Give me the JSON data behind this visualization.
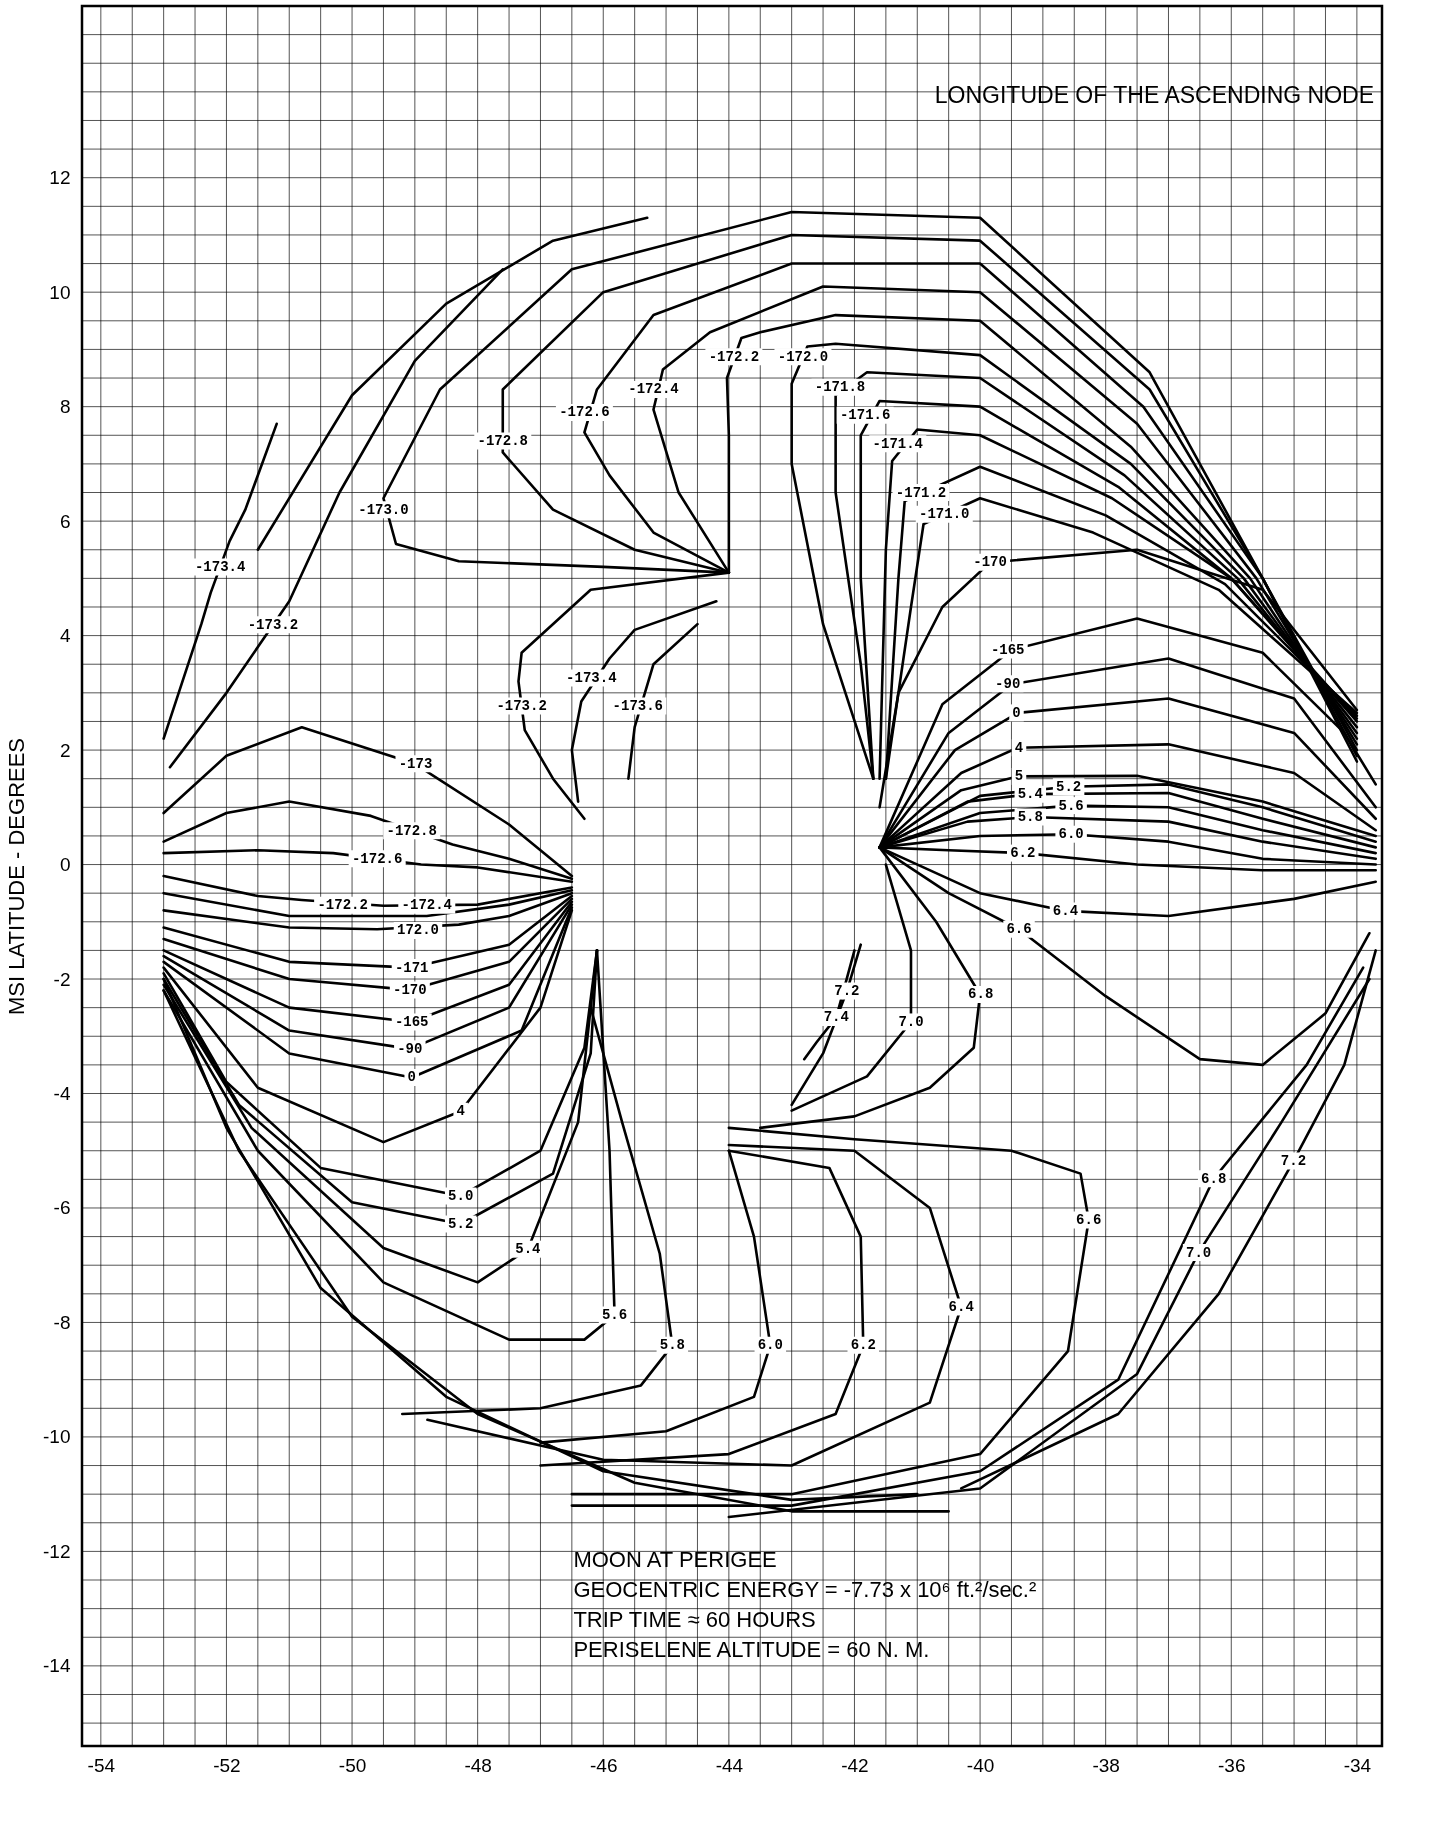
{
  "chart_data": {
    "type": "line",
    "ylabel": "MSI LATITUDE - DEGREES",
    "xlim": [
      -54.3,
      -33.6
    ],
    "ylim": [
      -15.4,
      15
    ],
    "grid": true,
    "marker": "none",
    "line_style": "solid",
    "xticks": [
      -54,
      {
        "value": -53.5,
        "label": null
      },
      {
        "value": -53,
        "label": null
      },
      {
        "value": -52.5,
        "label": null
      },
      -52,
      {
        "value": -51.5,
        "label": null
      },
      {
        "value": -51,
        "label": null
      },
      {
        "value": -50.5,
        "label": null
      },
      -50,
      {
        "value": -49.5,
        "label": null
      },
      {
        "value": -49,
        "label": null
      },
      {
        "value": -48.5,
        "label": null
      },
      -48,
      {
        "value": -47.5,
        "label": null
      },
      {
        "value": -47,
        "label": null
      },
      {
        "value": -46.5,
        "label": null
      },
      -46,
      {
        "value": -45.5,
        "label": null
      },
      {
        "value": -45,
        "label": null
      },
      {
        "value": -44.5,
        "label": null
      },
      -44,
      {
        "value": -43.5,
        "label": null
      },
      {
        "value": -43,
        "label": null
      },
      {
        "value": -42.5,
        "label": null
      },
      -42,
      {
        "value": -41.5,
        "label": null
      },
      {
        "value": -41,
        "label": null
      },
      {
        "value": -40.5,
        "label": null
      },
      -40,
      {
        "value": -39.5,
        "label": null
      },
      {
        "value": -39,
        "label": null
      },
      {
        "value": -38.5,
        "label": null
      },
      -38,
      {
        "value": -37.5,
        "label": null
      },
      {
        "value": -37,
        "label": null
      },
      {
        "value": -36.5,
        "label": null
      },
      -36,
      {
        "value": -35.5,
        "label": null
      },
      {
        "value": -35,
        "label": null
      },
      {
        "value": -34.5,
        "label": null
      },
      -34
    ],
    "yticks": [
      {
        "value": -15,
        "label": null
      },
      {
        "value": -14.5,
        "label": null
      },
      -14,
      {
        "value": -13.5,
        "label": null
      },
      {
        "value": -13,
        "label": null
      },
      {
        "value": -12.5,
        "label": null
      },
      -12,
      {
        "value": -11.5,
        "label": null
      },
      {
        "value": -11,
        "label": null
      },
      {
        "value": -10.5,
        "label": null
      },
      -10,
      {
        "value": -9.5,
        "label": null
      },
      {
        "value": -9,
        "label": null
      },
      {
        "value": -8.5,
        "label": null
      },
      -8,
      {
        "value": -7.5,
        "label": null
      },
      {
        "value": -7,
        "label": null
      },
      {
        "value": -6.5,
        "label": null
      },
      -6,
      {
        "value": -5.5,
        "label": null
      },
      {
        "value": -5,
        "label": null
      },
      {
        "value": -4.5,
        "label": null
      },
      -4,
      {
        "value": -3.5,
        "label": null
      },
      {
        "value": -3,
        "label": null
      },
      {
        "value": -2.5,
        "label": null
      },
      -2,
      {
        "value": -1.5,
        "label": null
      },
      {
        "value": -1,
        "label": null
      },
      {
        "value": -0.5,
        "label": null
      },
      0,
      {
        "value": 0.5,
        "label": null
      },
      {
        "value": 1,
        "label": null
      },
      {
        "value": 1.5,
        "label": null
      },
      2,
      {
        "value": 2.5,
        "label": null
      },
      {
        "value": 3,
        "label": null
      },
      {
        "value": 3.5,
        "label": null
      },
      4,
      {
        "value": 4.5,
        "label": null
      },
      {
        "value": 5,
        "label": null
      },
      {
        "value": 5.5,
        "label": null
      },
      6,
      {
        "value": 6.5,
        "label": null
      },
      {
        "value": 7,
        "label": null
      },
      {
        "value": 7.5,
        "label": null
      },
      8,
      {
        "value": 8.5,
        "label": null
      },
      {
        "value": 9,
        "label": null
      },
      {
        "value": 9.5,
        "label": null
      },
      10,
      {
        "value": 10.5,
        "label": null
      },
      {
        "value": 11,
        "label": null
      },
      {
        "value": 11.5,
        "label": null
      },
      12,
      {
        "value": 12.5,
        "label": null
      },
      {
        "value": 13,
        "label": null
      },
      {
        "value": 13.5,
        "label": null
      },
      {
        "value": 14,
        "label": null
      },
      {
        "value": 14.5,
        "label": null
      }
    ],
    "series": [
      {
        "color": "#000000",
        "x": [
          -34.0,
          -35.5,
          -37.3,
          -40,
          -43,
          -46.5,
          -48.6,
          -49.5,
          -49.3,
          -48.3,
          -46,
          -44
        ],
        "values": [
          1.8,
          5.0,
          8.6,
          11.3,
          11.4,
          10.4,
          8.3,
          6.4,
          5.6,
          5.3,
          5.2,
          5.1
        ]
      },
      {
        "color": "#000000",
        "x": [
          -34.0,
          -35.5,
          -37.3,
          -40,
          -43,
          -46,
          -47.6,
          -47.6,
          -46.8,
          -45.5,
          -44
        ],
        "values": [
          1.9,
          5,
          8.3,
          10.9,
          11.0,
          10.0,
          8.3,
          7.2,
          6.2,
          5.5,
          5.1
        ]
      },
      {
        "color": "#000000",
        "x": [
          -34.0,
          -35.5,
          -37.4,
          -40,
          -43,
          -45.2,
          -46.1,
          -46.3,
          -45.9,
          -45.2,
          -44
        ],
        "values": [
          2.0,
          5,
          8.0,
          10.5,
          10.5,
          9.6,
          8.3,
          7.55,
          6.8,
          5.8,
          5.1
        ]
      },
      {
        "color": "#000000",
        "x": [
          -34.0,
          -35.6,
          -37.5,
          -40,
          -42.5,
          -44.3,
          -45.05,
          -45.2,
          -44.8,
          -44
        ],
        "values": [
          2.1,
          5,
          7.7,
          10,
          10.1,
          9.3,
          8.65,
          7.95,
          6.5,
          5.1
        ]
      },
      {
        "color": "#000000",
        "x": [
          -34.0,
          -35.7,
          -37.6,
          -40,
          -42.3,
          -43.5,
          -43.8,
          -44.03,
          -44.0,
          -44.0
        ],
        "values": [
          2.2,
          5,
          7.3,
          9.5,
          9.6,
          9.3,
          9.2,
          8.5,
          7.5,
          5.1
        ]
      },
      {
        "color": "#000000",
        "x": [
          -52.9,
          -52.0,
          -51.5,
          -51.0,
          -50.2,
          -49,
          -47.6
        ],
        "values": [
          1.7,
          3.0,
          3.8,
          4.6,
          6.5,
          8.8,
          10.4
        ]
      },
      {
        "color": "#000000",
        "x": [
          -53,
          -52.4,
          -52.25,
          -51.95,
          -51.7,
          -51.2
        ],
        "values": [
          2.2,
          4.2,
          4.75,
          5.65,
          6.2,
          7.7
        ]
      },
      {
        "color": "#000000",
        "x": [
          -51.5,
          -50,
          -48.5,
          -46.8,
          -45.3
        ],
        "values": [
          5.5,
          8.2,
          9.8,
          10.9,
          11.3
        ]
      },
      {
        "color": "#000000",
        "x": [
          -34.0,
          -35.8,
          -37.6,
          -40,
          -42.3,
          -42.75,
          -43.0,
          -43.0,
          -42.5,
          -41.7
        ],
        "values": [
          2.3,
          5,
          7.0,
          8.9,
          9.1,
          9.05,
          8.4,
          7,
          4.2,
          1.5
        ]
      },
      {
        "color": "#000000",
        "x": [
          -34.0,
          -35.9,
          -37.7,
          -40,
          -41.8,
          -42.3,
          -42.3,
          -41.9,
          -41.7
        ],
        "values": [
          2.4,
          5,
          6.8,
          8.5,
          8.6,
          8.2,
          6.5,
          3.5,
          1.5
        ]
      },
      {
        "color": "#000000",
        "x": [
          -34.0,
          -36,
          -37.8,
          -40,
          -41.6,
          -41.9,
          -41.9,
          -41.7
        ],
        "values": [
          2.5,
          5,
          6.6,
          8.0,
          8.1,
          7.5,
          5,
          1.5
        ]
      },
      {
        "color": "#000000",
        "x": [
          -34.0,
          -36,
          -37.9,
          -40,
          -41.0,
          -41.4,
          -41.5,
          -41.6
        ],
        "values": [
          2.55,
          5,
          6.4,
          7.5,
          7.6,
          7.05,
          5.5,
          1.5
        ]
      },
      {
        "color": "#000000",
        "x": [
          -34.0,
          -36.1,
          -38,
          -40,
          -41.2,
          -41.3,
          -41.5
        ],
        "values": [
          2.6,
          4.9,
          6.1,
          6.95,
          6.35,
          5,
          1.5
        ]
      },
      {
        "color": "#000000",
        "x": [
          -34.0,
          -36.2,
          -38.2,
          -40,
          -40.9,
          -41.1,
          -41.5
        ],
        "values": [
          2.65,
          4.8,
          5.8,
          6.4,
          5.95,
          4.5,
          1.5
        ]
      },
      {
        "color": "#000000",
        "x": [
          -34.0,
          -35.5,
          -37.5,
          -39.84,
          -40.6,
          -41.3,
          -41.6
        ],
        "values": [
          2.7,
          4.8,
          5.5,
          5.28,
          4.5,
          3,
          1.0
        ]
      },
      {
        "color": "#000000",
        "x": [
          -41.6,
          -40.6,
          -39.5,
          -37.5,
          -35.5,
          -34.2,
          -33.7
        ],
        "values": [
          0.3,
          2.8,
          3.75,
          4.3,
          3.7,
          2.3,
          1.4
        ]
      },
      {
        "color": "#000000",
        "x": [
          -41.6,
          -40.5,
          -39.5,
          -37,
          -35,
          -33.7
        ],
        "values": [
          0.3,
          2.3,
          3.15,
          3.6,
          2.9,
          1.0
        ]
      },
      {
        "color": "#000000",
        "x": [
          -41.6,
          -40.4,
          -39.4,
          -37,
          -35,
          -33.7
        ],
        "values": [
          0.3,
          2.0,
          2.65,
          2.9,
          2.3,
          0.8
        ]
      },
      {
        "color": "#000000",
        "x": [
          -41.6,
          -40.3,
          -39.4,
          -37,
          -35,
          -33.7
        ],
        "values": [
          0.3,
          1.6,
          2.04,
          2.1,
          1.6,
          0.6
        ]
      },
      {
        "color": "#000000",
        "x": [
          -41.6,
          -40.3,
          -39.4,
          -37.5,
          -35.5,
          -33.7
        ],
        "values": [
          0.3,
          1.3,
          1.54,
          1.55,
          1.1,
          0.5
        ]
      },
      {
        "color": "#000000",
        "x": [
          -41.6,
          -40,
          -38.6,
          -37,
          -35.5,
          -33.7
        ],
        "values": [
          0.3,
          1.2,
          1.36,
          1.4,
          1.0,
          0.4
        ]
      },
      {
        "color": "#000000",
        "x": [
          -41.6,
          -40.2,
          -39.2,
          -37,
          -35.5,
          -33.7
        ],
        "values": [
          0.3,
          1.1,
          1.23,
          1.25,
          0.8,
          0.3
        ]
      },
      {
        "color": "#000000",
        "x": [
          -41.6,
          -40,
          -38.55,
          -37,
          -35.5,
          -33.7
        ],
        "values": [
          0.3,
          0.9,
          1.03,
          1.0,
          0.6,
          0.2
        ]
      },
      {
        "color": "#000000",
        "x": [
          -41.6,
          -40.2,
          -39.2,
          -37,
          -35.5,
          -33.7
        ],
        "values": [
          0.3,
          0.75,
          0.83,
          0.75,
          0.4,
          0.1
        ]
      },
      {
        "color": "#000000",
        "x": [
          -41.6,
          -40,
          -38.55,
          -37,
          -35.5,
          -33.7
        ],
        "values": [
          0.3,
          0.5,
          0.53,
          0.4,
          0.1,
          0.0
        ]
      },
      {
        "color": "#000000",
        "x": [
          -41.6,
          -40.5,
          -39.3,
          -37.5,
          -35.5,
          -33.7
        ],
        "values": [
          0.3,
          0.25,
          0.2,
          0.0,
          -0.1,
          -0.1
        ]
      },
      {
        "color": "#000000",
        "x": [
          -41.6,
          -40,
          -38.64,
          -37,
          -35,
          -33.7
        ],
        "values": [
          0.3,
          -0.5,
          -0.81,
          -0.9,
          -0.6,
          -0.3
        ]
      },
      {
        "color": "#000000",
        "x": [
          -41.6,
          -40.5,
          -39.38,
          -38,
          -36.5,
          -35.5,
          -34.5,
          -33.8
        ],
        "values": [
          0.3,
          -0.5,
          -1.13,
          -2.3,
          -3.4,
          -3.5,
          -2.6,
          -1.2
        ]
      },
      {
        "color": "#000000",
        "x": [
          -41.6,
          -40.7,
          -40.0,
          -40.1,
          -40.8,
          -42,
          -43.5
        ],
        "values": [
          0.3,
          -1.0,
          -2.27,
          -3.2,
          -3.9,
          -4.4,
          -4.6
        ]
      },
      {
        "color": "#000000",
        "x": [
          -41.5,
          -41.1,
          -41.1,
          -41.8,
          -43
        ],
        "values": [
          0.0,
          -1.5,
          -2.75,
          -3.7,
          -4.3
        ]
      },
      {
        "color": "#000000",
        "x": [
          -41.9,
          -42.12,
          -42.5,
          -43.0
        ],
        "values": [
          -1.4,
          -2.21,
          -3.3,
          -4.2
        ]
      },
      {
        "color": "#000000",
        "x": [
          -42.0,
          -42.29,
          -42.6,
          -42.8
        ],
        "values": [
          -1.5,
          -2.67,
          -3.1,
          -3.4
        ]
      },
      {
        "color": "#000000",
        "x": [
          -44,
          -46.2,
          -47.3,
          -47.35,
          -47.25,
          -46.8,
          -46.3
        ],
        "values": [
          5.1,
          4.8,
          3.7,
          3.2,
          2.35,
          1.5,
          0.8
        ]
      },
      {
        "color": "#000000",
        "x": [
          -44.2,
          -45.5,
          -45.9,
          -46.35,
          -46.5,
          -46.4
        ],
        "values": [
          4.6,
          4.1,
          3.6,
          2.85,
          2.0,
          1.1
        ]
      },
      {
        "color": "#000000",
        "x": [
          -44.5,
          -45.2,
          -45.5,
          -45.6
        ],
        "values": [
          4.2,
          3.5,
          2.4,
          1.5
        ]
      },
      {
        "color": "#000000",
        "x": [
          -53,
          -52,
          -50.8,
          -49,
          -47.5,
          -46.5
        ],
        "values": [
          0.9,
          1.9,
          2.4,
          1.76,
          0.7,
          -0.2
        ]
      },
      {
        "color": "#000000",
        "x": [
          -53,
          -52,
          -51,
          -49.7,
          -48.4,
          -47.5,
          -46.5
        ],
        "values": [
          0.4,
          0.9,
          1.1,
          0.85,
          0.35,
          0.1,
          -0.25
        ]
      },
      {
        "color": "#000000",
        "x": [
          -53,
          -51.5,
          -50.3,
          -48.9,
          -48,
          -46.5
        ],
        "values": [
          0.2,
          0.25,
          0.2,
          0.0,
          -0.05,
          -0.3
        ]
      },
      {
        "color": "#000000",
        "x": [
          -53,
          -51.5,
          -50.8,
          -49.5,
          -48,
          -46.5
        ],
        "values": [
          -0.2,
          -0.55,
          -0.62,
          -0.72,
          -0.7,
          -0.4
        ]
      },
      {
        "color": "#000000",
        "x": [
          -53,
          -51,
          -48.81,
          -47.5,
          -46.5
        ],
        "values": [
          -0.5,
          -0.9,
          -0.9,
          -0.7,
          -0.45
        ]
      },
      {
        "color": "#000000",
        "x": [
          -53,
          -51,
          -49.6,
          -48.3,
          -47.5,
          -46.5
        ],
        "values": [
          -0.8,
          -1.1,
          -1.13,
          -1.05,
          -0.9,
          -0.5
        ]
      },
      {
        "color": "#000000",
        "x": [
          -53,
          -51,
          -49.05,
          -47.5,
          -46.5
        ],
        "values": [
          -1.1,
          -1.7,
          -1.8,
          -1.4,
          -0.55
        ]
      },
      {
        "color": "#000000",
        "x": [
          -53,
          -51,
          -49.08,
          -47.5,
          -46.5
        ],
        "values": [
          -1.3,
          -2.0,
          -2.19,
          -1.7,
          -0.6
        ]
      },
      {
        "color": "#000000",
        "x": [
          -53,
          -51,
          -49.05,
          -47.5,
          -46.5
        ],
        "values": [
          -1.5,
          -2.5,
          -2.75,
          -2.1,
          -0.65
        ]
      },
      {
        "color": "#000000",
        "x": [
          -53,
          -51,
          -49.08,
          -47.5,
          -46.5
        ],
        "values": [
          -1.6,
          -2.9,
          -3.22,
          -2.5,
          -0.7
        ]
      },
      {
        "color": "#000000",
        "x": [
          -53,
          -51,
          -49.05,
          -47.3,
          -46.5
        ],
        "values": [
          -1.7,
          -3.3,
          -3.72,
          -2.9,
          -0.75
        ]
      },
      {
        "color": "#000000",
        "x": [
          -53,
          -51.5,
          -49.5,
          -48.27,
          -47,
          -46.5
        ],
        "values": [
          -1.8,
          -3.9,
          -4.85,
          -4.31,
          -2.5,
          -0.8
        ]
      },
      {
        "color": "#000000",
        "x": [
          -53,
          -52,
          -50.5,
          -48.27,
          -47,
          -46.3,
          -46.1
        ],
        "values": [
          -1.9,
          -3.8,
          -5.3,
          -5.79,
          -5.0,
          -3.2,
          -1.5
        ]
      },
      {
        "color": "#000000",
        "x": [
          -53,
          -51.8,
          -50,
          -48.27,
          -46.8,
          -46.2,
          -46.1
        ],
        "values": [
          -2.0,
          -4.2,
          -5.9,
          -6.28,
          -5.4,
          -3.3,
          -1.5
        ]
      },
      {
        "color": "#000000",
        "x": [
          -53,
          -51.6,
          -49.5,
          -48,
          -47.2,
          -46.4,
          -46.1
        ],
        "values": [
          -2.1,
          -4.6,
          -6.7,
          -7.3,
          -6.72,
          -4.5,
          -1.5
        ]
      },
      {
        "color": "#000000",
        "x": [
          -53,
          -51.5,
          -49.5,
          -47.5,
          -46.3,
          -45.82,
          -45.9,
          -46.1
        ],
        "values": [
          -2.2,
          -5,
          -7.3,
          -8.3,
          -8.3,
          -7.87,
          -5,
          -1.5
        ]
      },
      {
        "color": "#000000",
        "x": [
          -46.2,
          -45.7,
          -45.1,
          -44.9,
          -45.4,
          -47,
          -49.2
        ],
        "values": [
          -2.5,
          -4.5,
          -6.8,
          -8.4,
          -9.1,
          -9.5,
          -9.6
        ]
      },
      {
        "color": "#000000",
        "x": [
          -44,
          -43.6,
          -43.34,
          -43.6,
          -45,
          -47
        ],
        "values": [
          -5.0,
          -6.5,
          -8.4,
          -9.3,
          -9.9,
          -10.1
        ]
      },
      {
        "color": "#000000",
        "x": [
          -44,
          -42.4,
          -41.9,
          -41.86,
          -42.3,
          -44,
          -47
        ],
        "values": [
          -5.0,
          -5.3,
          -6.5,
          -8.4,
          -9.6,
          -10.3,
          -10.5
        ]
      },
      {
        "color": "#000000",
        "x": [
          -44,
          -42,
          -40.8,
          -40.3,
          -40.8,
          -43,
          -46,
          -48.8
        ],
        "values": [
          -4.9,
          -5.0,
          -6,
          -7.73,
          -9.4,
          -10.5,
          -10.4,
          -9.7
        ]
      },
      {
        "color": "#000000",
        "x": [
          -44,
          -42,
          -39.5,
          -38.4,
          -38.27,
          -38.6,
          -40,
          -43,
          -46.5
        ],
        "values": [
          -4.6,
          -4.8,
          -5.0,
          -5.4,
          -6.21,
          -8.5,
          -10.3,
          -11.0,
          -11.0
        ]
      },
      {
        "color": "#000000",
        "x": [
          -46.5,
          -43,
          -40,
          -37.8,
          -36.28,
          -34.8,
          -33.9
        ],
        "values": [
          -11.2,
          -11.2,
          -10.6,
          -9,
          -5.49,
          -3.5,
          -1.8
        ]
      },
      {
        "color": "#000000",
        "x": [
          -44,
          -40,
          -37.5,
          -36.52,
          -35.2,
          -33.8
        ],
        "values": [
          -11.4,
          -10.9,
          -8.9,
          -6.78,
          -4.5,
          -2.0
        ]
      },
      {
        "color": "#000000",
        "x": [
          -40.3,
          -37.8,
          -36.2,
          -35.01,
          -34.2,
          -33.7
        ],
        "values": [
          -10.9,
          -9.6,
          -7.5,
          -5.18,
          -3.5,
          -1.5
        ]
      },
      {
        "color": "#000000",
        "x": [
          -53,
          -52,
          -50.5,
          -48.5,
          -46,
          -43,
          -41
        ],
        "values": [
          -2.0,
          -4.6,
          -7.4,
          -9.3,
          -10.6,
          -11.1,
          -11.0
        ]
      },
      {
        "color": "#000000",
        "x": [
          -53,
          -51.8,
          -50,
          -48,
          -45.5,
          -43,
          -40.5
        ],
        "values": [
          -2.2,
          -5,
          -7.9,
          -9.6,
          -10.8,
          -11.3,
          -11.3
        ]
      }
    ],
    "annotations": [
      "LONGITUDE OF THE ASCENDING NODE",
      {
        "text": "-172.2",
        "x": -43.92,
        "y": 8.87
      },
      {
        "text": "-172.0",
        "x": -42.82,
        "y": 8.87
      },
      {
        "text": "-172.4",
        "x": -45.2,
        "y": 8.3
      },
      {
        "text": "-172.6",
        "x": -46.3,
        "y": 7.9
      },
      {
        "text": "-172.8",
        "x": -47.6,
        "y": 7.4
      },
      {
        "text": "-173.0",
        "x": -49.5,
        "y": 6.2
      },
      {
        "text": "-173.4",
        "x": -52.1,
        "y": 5.2
      },
      {
        "text": "-173.2",
        "x": -51.26,
        "y": 4.19
      },
      {
        "text": "-171.8",
        "x": -42.23,
        "y": 8.34
      },
      {
        "text": "-171.6",
        "x": -41.83,
        "y": 7.85
      },
      {
        "text": "-171.4",
        "x": -41.31,
        "y": 7.35
      },
      {
        "text": "-171.2",
        "x": -40.94,
        "y": 6.5
      },
      {
        "text": "-171.0",
        "x": -40.57,
        "y": 6.12
      },
      {
        "text": "-170",
        "x": -39.84,
        "y": 5.28
      },
      {
        "text": "-165",
        "x": -39.56,
        "y": 3.75
      },
      {
        "text": "-90",
        "x": -39.56,
        "y": 3.16
      },
      {
        "text": "0",
        "x": -39.42,
        "y": 2.65
      },
      {
        "text": "4",
        "x": -39.38,
        "y": 2.04
      },
      {
        "text": "5",
        "x": -39.38,
        "y": 1.54
      },
      {
        "text": "5.2",
        "x": -38.59,
        "y": 1.36
      },
      {
        "text": "5.4",
        "x": -39.2,
        "y": 1.23
      },
      {
        "text": "5.6",
        "x": -38.55,
        "y": 1.03
      },
      {
        "text": "5.8",
        "x": -39.2,
        "y": 0.83
      },
      {
        "text": "6.0",
        "x": -38.55,
        "y": 0.53
      },
      {
        "text": "6.2",
        "x": -39.32,
        "y": 0.2
      },
      {
        "text": "6.4",
        "x": -38.64,
        "y": -0.81
      },
      {
        "text": "6.6",
        "x": -39.38,
        "y": -1.13
      },
      {
        "text": "6.8",
        "x": -39.99,
        "y": -2.27
      },
      {
        "text": "7.0",
        "x": -41.1,
        "y": -2.75
      },
      {
        "text": "7.2",
        "x": -42.12,
        "y": -2.21
      },
      {
        "text": "7.4",
        "x": -42.29,
        "y": -2.67
      },
      {
        "text": "-173.2",
        "x": -47.3,
        "y": 2.77
      },
      {
        "text": "-173.4",
        "x": -46.19,
        "y": 3.26
      },
      {
        "text": "-173.6",
        "x": -45.45,
        "y": 2.77
      },
      {
        "text": "-173",
        "x": -48.99,
        "y": 1.76
      },
      {
        "text": "-172.8",
        "x": -49.05,
        "y": 0.59
      },
      {
        "text": "-172.6",
        "x": -49.6,
        "y": 0.1
      },
      {
        "text": "-172.2",
        "x": -50.15,
        "y": -0.71
      },
      {
        "text": "-172.4",
        "x": -48.81,
        "y": -0.71
      },
      {
        "text": "172.0",
        "x": -48.95,
        "y": -1.15
      },
      {
        "text": "-171",
        "x": -49.05,
        "y": -1.8
      },
      {
        "text": "-170",
        "x": -49.08,
        "y": -2.19
      },
      {
        "text": "-165",
        "x": -49.05,
        "y": -2.75
      },
      {
        "text": "-90",
        "x": -49.08,
        "y": -3.22
      },
      {
        "text": "0",
        "x": -49.05,
        "y": -3.72
      },
      {
        "text": "4",
        "x": -48.27,
        "y": -4.31
      },
      {
        "text": "5.0",
        "x": -48.27,
        "y": -5.79
      },
      {
        "text": "5.2",
        "x": -48.27,
        "y": -6.28
      },
      {
        "text": "5.4",
        "x": -47.2,
        "y": -6.72
      },
      {
        "text": "5.6",
        "x": -45.82,
        "y": -7.87
      },
      {
        "text": "5.8",
        "x": -44.9,
        "y": -8.4
      },
      {
        "text": "6.0",
        "x": -43.34,
        "y": -8.4
      },
      {
        "text": "6.2",
        "x": -41.86,
        "y": -8.4
      },
      {
        "text": "6.4",
        "x": -40.3,
        "y": -7.73
      },
      {
        "text": "6.6",
        "x": -38.27,
        "y": -6.21
      },
      {
        "text": "6.8",
        "x": -36.28,
        "y": -5.49
      },
      {
        "text": "7.2",
        "x": -35.01,
        "y": -5.18
      },
      {
        "text": "7.0",
        "x": -36.52,
        "y": -6.78
      },
      "MOON AT PERIGEE",
      "GEOCENTRIC ENERGY = -7.73 x 10⁶ ft.²/sec.²",
      "TRIP TIME ≈ 60 HOURS",
      "PERISELENE ALTITUDE = 60 N. M."
    ]
  }
}
